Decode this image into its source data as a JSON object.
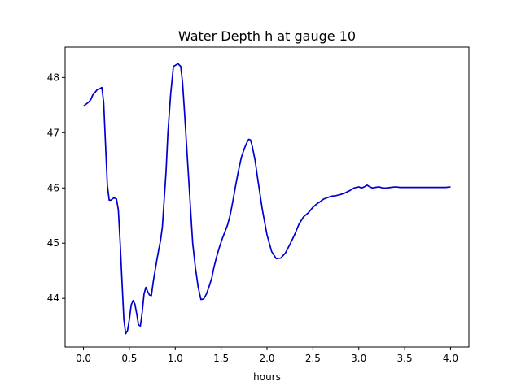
{
  "chart_data": {
    "type": "line",
    "title": "Water Depth h at gauge 10",
    "xlabel": "hours",
    "ylabel": "",
    "xlim": [
      -0.2,
      4.2
    ],
    "ylim": [
      43.12,
      48.55
    ],
    "xticks": [
      0.0,
      0.5,
      1.0,
      1.5,
      2.0,
      2.5,
      3.0,
      3.5,
      4.0
    ],
    "xtick_labels": [
      "0.0",
      "0.5",
      "1.0",
      "1.5",
      "2.0",
      "2.5",
      "3.0",
      "3.5",
      "4.0"
    ],
    "yticks": [
      44,
      45,
      46,
      47,
      48
    ],
    "ytick_labels": [
      "44",
      "45",
      "46",
      "47",
      "48"
    ],
    "grid": false,
    "series": [
      {
        "color": "#0000cc",
        "x": [
          0.0,
          0.03,
          0.06,
          0.08,
          0.1,
          0.13,
          0.15,
          0.18,
          0.2,
          0.22,
          0.24,
          0.26,
          0.28,
          0.3,
          0.33,
          0.36,
          0.38,
          0.4,
          0.42,
          0.44,
          0.46,
          0.48,
          0.5,
          0.52,
          0.54,
          0.56,
          0.58,
          0.6,
          0.62,
          0.64,
          0.66,
          0.68,
          0.7,
          0.72,
          0.74,
          0.76,
          0.78,
          0.8,
          0.82,
          0.84,
          0.86,
          0.88,
          0.9,
          0.92,
          0.95,
          0.98,
          1.0,
          1.03,
          1.06,
          1.08,
          1.1,
          1.13,
          1.16,
          1.19,
          1.22,
          1.25,
          1.28,
          1.31,
          1.34,
          1.37,
          1.4,
          1.42,
          1.45,
          1.48,
          1.51,
          1.54,
          1.57,
          1.6,
          1.63,
          1.66,
          1.69,
          1.72,
          1.75,
          1.78,
          1.8,
          1.82,
          1.84,
          1.87,
          1.9,
          1.95,
          2.0,
          2.05,
          2.1,
          2.15,
          2.2,
          2.25,
          2.3,
          2.35,
          2.4,
          2.45,
          2.5,
          2.55,
          2.58,
          2.6,
          2.62,
          2.65,
          2.7,
          2.75,
          2.8,
          2.85,
          2.9,
          2.95,
          3.0,
          3.03,
          3.06,
          3.09,
          3.12,
          3.15,
          3.18,
          3.22,
          3.26,
          3.3,
          3.35,
          3.4,
          3.45,
          3.5,
          3.55,
          3.6,
          3.65,
          3.7,
          3.75,
          3.8,
          3.85,
          3.9,
          3.95,
          4.0
        ],
        "y": [
          47.48,
          47.52,
          47.56,
          47.6,
          47.68,
          47.74,
          47.78,
          47.8,
          47.82,
          47.55,
          46.8,
          46.05,
          45.78,
          45.78,
          45.82,
          45.8,
          45.6,
          45.0,
          44.3,
          43.62,
          43.36,
          43.42,
          43.62,
          43.88,
          43.96,
          43.9,
          43.72,
          43.52,
          43.5,
          43.75,
          44.08,
          44.2,
          44.12,
          44.06,
          44.05,
          44.3,
          44.5,
          44.7,
          44.88,
          45.05,
          45.3,
          45.8,
          46.3,
          47.0,
          47.7,
          48.2,
          48.22,
          48.25,
          48.2,
          47.9,
          47.4,
          46.6,
          45.8,
          45.0,
          44.55,
          44.2,
          43.98,
          43.99,
          44.08,
          44.22,
          44.38,
          44.55,
          44.75,
          44.92,
          45.07,
          45.2,
          45.33,
          45.52,
          45.78,
          46.06,
          46.32,
          46.55,
          46.7,
          46.82,
          46.88,
          46.87,
          46.75,
          46.5,
          46.15,
          45.6,
          45.15,
          44.85,
          44.72,
          44.73,
          44.82,
          44.98,
          45.15,
          45.35,
          45.48,
          45.55,
          45.65,
          45.72,
          45.75,
          45.78,
          45.8,
          45.82,
          45.85,
          45.86,
          45.88,
          45.91,
          45.95,
          46.0,
          46.02,
          46.0,
          46.02,
          46.05,
          46.02,
          46.0,
          46.01,
          46.02,
          46.0,
          46.0,
          46.01,
          46.02,
          46.01,
          46.01,
          46.01,
          46.01,
          46.01,
          46.01,
          46.01,
          46.01,
          46.01,
          46.01,
          46.01,
          46.02
        ]
      }
    ]
  }
}
